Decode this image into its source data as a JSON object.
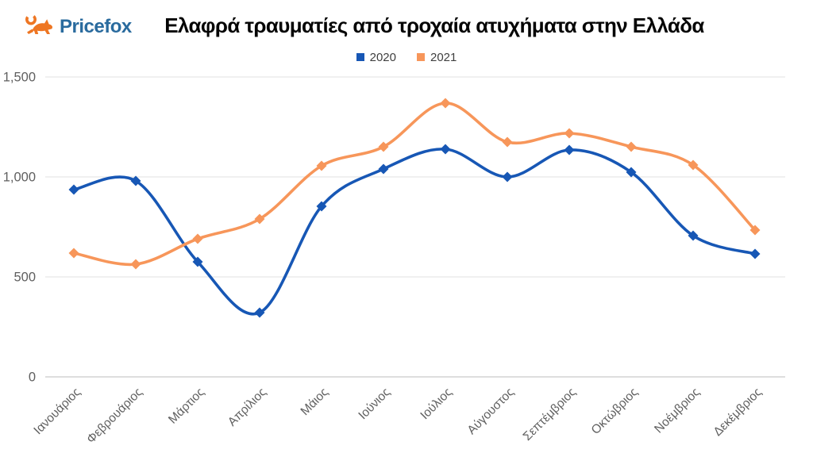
{
  "logo": {
    "text": "Pricefox",
    "icon": "fox-icon",
    "icon_color": "#ee7623",
    "text_color": "#2a6b9e"
  },
  "title": "Ελαφρά τραυματίες από τροχαία ατυχήματα στην Ελλάδα",
  "legend": {
    "items": [
      {
        "label": "2020",
        "color": "#1757b5"
      },
      {
        "label": "2021",
        "color": "#f7965a"
      }
    ]
  },
  "chart_data": {
    "type": "line",
    "title": "Ελαφρά τραυματίες από τροχαία ατυχήματα στην Ελλάδα",
    "categories": [
      "Ιανουάριος",
      "Φεβρουάριος",
      "Μάρτιος",
      "Απρίλιος",
      "Μάιος",
      "Ιούνιος",
      "Ιούλιος",
      "Αύγουστος",
      "Σεπτέμβριος",
      "Οκτώβριος",
      "Νοέμβριος",
      "Δεκέμβριος"
    ],
    "series": [
      {
        "name": "2020",
        "color": "#1757b5",
        "values": [
          935,
          980,
          575,
          320,
          855,
          1040,
          1140,
          1000,
          1135,
          1025,
          705,
          615
        ]
      },
      {
        "name": "2021",
        "color": "#f7965a",
        "values": [
          620,
          565,
          690,
          790,
          1055,
          1150,
          1370,
          1175,
          1220,
          1150,
          1060,
          735
        ]
      }
    ],
    "xlabel": "",
    "ylabel": "",
    "ylim": [
      0,
      1500
    ],
    "yticks": [
      {
        "value": 0,
        "label": "0"
      },
      {
        "value": 500,
        "label": "500"
      },
      {
        "value": 1000,
        "label": "1,000"
      },
      {
        "value": 1500,
        "label": "1,500"
      }
    ],
    "grid": true,
    "legend_position": "top",
    "marker": "diamond",
    "smooth": true,
    "colors": {
      "gridline": "#e8e8e8",
      "baseline": "#d4d4d4",
      "axis_text": "#5f5f5f"
    }
  }
}
